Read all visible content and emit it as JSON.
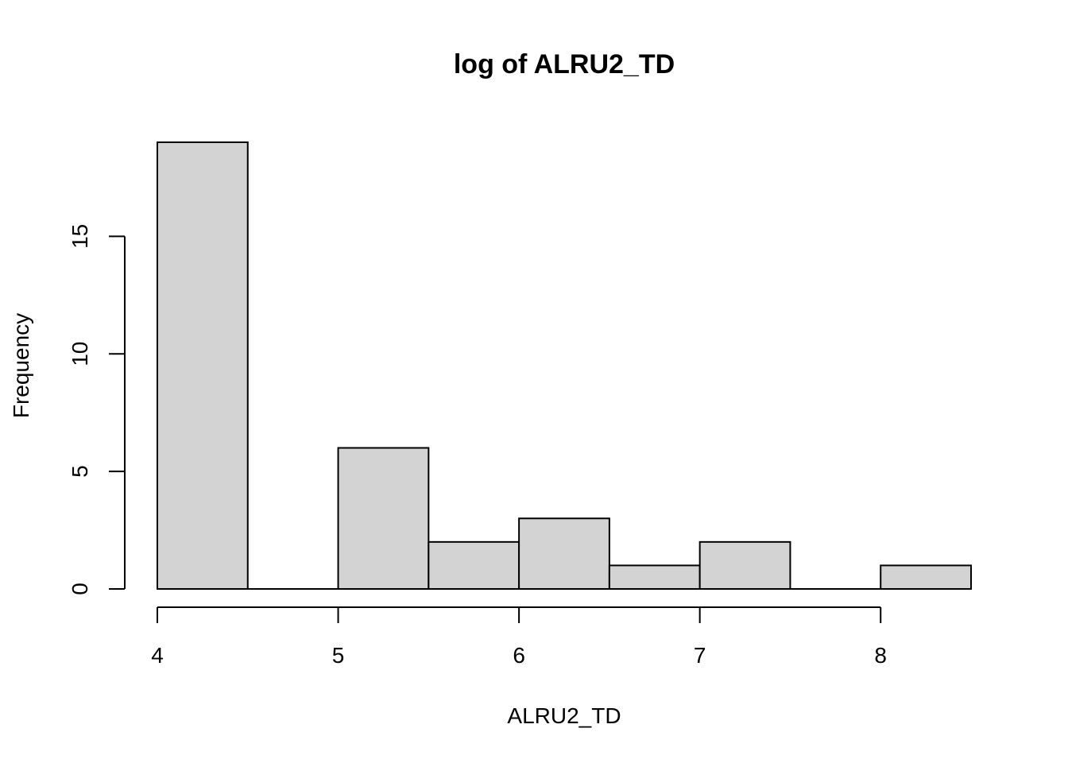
{
  "chart_data": {
    "type": "bar",
    "title": "log of ALRU2_TD",
    "xlabel": "ALRU2_TD",
    "ylabel": "Frequency",
    "bins": [
      {
        "x0": 4.0,
        "x1": 4.5,
        "count": 19
      },
      {
        "x0": 4.5,
        "x1": 5.0,
        "count": 0
      },
      {
        "x0": 5.0,
        "x1": 5.5,
        "count": 6
      },
      {
        "x0": 5.5,
        "x1": 6.0,
        "count": 2
      },
      {
        "x0": 6.0,
        "x1": 6.5,
        "count": 3
      },
      {
        "x0": 6.5,
        "x1": 7.0,
        "count": 1
      },
      {
        "x0": 7.0,
        "x1": 7.5,
        "count": 2
      },
      {
        "x0": 7.5,
        "x1": 8.0,
        "count": 0
      },
      {
        "x0": 8.0,
        "x1": 8.5,
        "count": 1
      }
    ],
    "xticks": [
      4,
      5,
      6,
      7,
      8
    ],
    "yticks": [
      0,
      5,
      10,
      15
    ],
    "xlim": [
      4,
      8.5
    ],
    "ylim": [
      0,
      19
    ],
    "bar_color": "#d3d3d3",
    "grid": false
  }
}
